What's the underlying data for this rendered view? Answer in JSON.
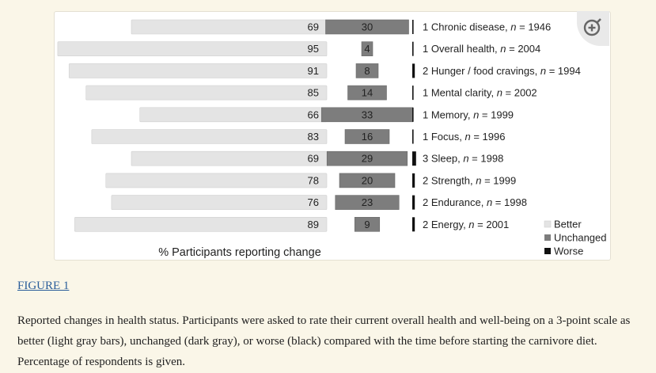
{
  "figure": {
    "link_label": "FIGURE 1",
    "caption": "Reported changes in health status. Participants were asked to rate their current overall health and well-being on a 3-point scale as better (light gray bars), unchanged (dark gray), or worse (black) compared with the time before starting the carnivore diet. Percentage of respondents is given.",
    "zoom_icon": "zoom-in-icon"
  },
  "chart_data": {
    "type": "bar",
    "orientation": "horizontal-diverging",
    "xlabel": "% Participants reporting change",
    "categories": [
      {
        "name": "Chronic disease",
        "n": "1946"
      },
      {
        "name": "Overall health",
        "n": "2004"
      },
      {
        "name": "Hunger / food cravings",
        "n": "1994"
      },
      {
        "name": "Mental clarity",
        "n": "2002"
      },
      {
        "name": "Memory",
        "n": "1999"
      },
      {
        "name": "Focus",
        "n": "1996"
      },
      {
        "name": "Sleep",
        "n": "1998"
      },
      {
        "name": "Strength",
        "n": "1999"
      },
      {
        "name": "Endurance",
        "n": "1998"
      },
      {
        "name": "Energy",
        "n": "2001"
      }
    ],
    "series": [
      {
        "name": "Better",
        "color": "#e4e4e4",
        "values": [
          69,
          95,
          91,
          85,
          66,
          83,
          69,
          78,
          76,
          89
        ]
      },
      {
        "name": "Unchanged",
        "color": "#7d7d7d",
        "values": [
          30,
          4,
          8,
          14,
          33,
          16,
          29,
          20,
          23,
          9
        ]
      },
      {
        "name": "Worse",
        "color": "#111111",
        "values": [
          1,
          1,
          2,
          1,
          1,
          1,
          3,
          2,
          2,
          2
        ]
      }
    ],
    "n_prefix": "n",
    "legend": "bottom-right"
  }
}
